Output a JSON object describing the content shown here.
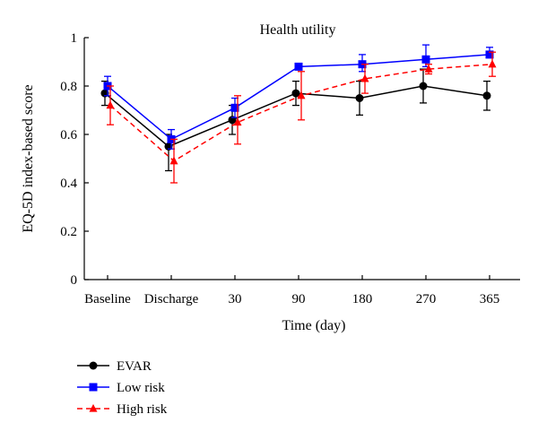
{
  "chart_data": {
    "type": "line",
    "title": "Health utility",
    "xlabel": "Time (day)",
    "ylabel": "EQ-5D index-based score",
    "categories": [
      "Baseline",
      "Discharge",
      "30",
      "90",
      "180",
      "270",
      "365"
    ],
    "ylim": [
      0,
      1
    ],
    "yticks": [
      "0",
      "0.2",
      "0.4",
      "0.6",
      "0.8",
      "1"
    ],
    "legend_position": "bottom-left",
    "series": [
      {
        "name": "EVAR",
        "color": "#000000",
        "marker": "circle",
        "line": "solid",
        "values": [
          0.77,
          0.55,
          0.66,
          0.77,
          0.75,
          0.8,
          0.76
        ],
        "err_low": [
          0.05,
          0.1,
          0.06,
          0.05,
          0.07,
          0.07,
          0.06
        ],
        "err_high": [
          0.05,
          0.05,
          0.06,
          0.05,
          0.07,
          0.07,
          0.06
        ]
      },
      {
        "name": "Low risk",
        "color": "#0000ff",
        "marker": "square",
        "line": "solid",
        "values": [
          0.8,
          0.58,
          0.71,
          0.88,
          0.89,
          0.91,
          0.93
        ],
        "err_low": [
          0.04,
          0.04,
          0.04,
          0.01,
          0.03,
          0.03,
          0.01
        ],
        "err_high": [
          0.04,
          0.04,
          0.04,
          0.01,
          0.04,
          0.06,
          0.03
        ]
      },
      {
        "name": "High risk",
        "color": "#ff0000",
        "marker": "triangle",
        "line": "dashed",
        "values": [
          0.72,
          0.49,
          0.65,
          0.76,
          0.83,
          0.87,
          0.89
        ],
        "err_low": [
          0.08,
          0.09,
          0.09,
          0.1,
          0.06,
          0.02,
          0.05
        ],
        "err_high": [
          0.08,
          0.09,
          0.11,
          0.1,
          0.06,
          0.02,
          0.05
        ]
      }
    ]
  }
}
